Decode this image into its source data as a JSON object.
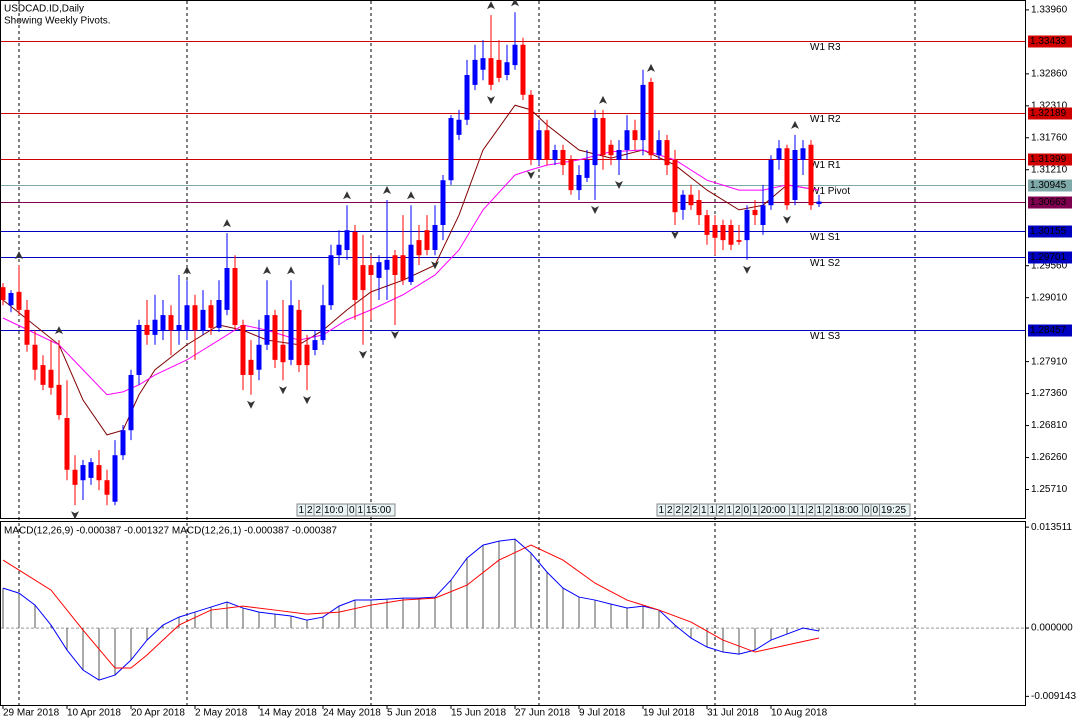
{
  "chart_data": [
    {
      "type": "candlestick",
      "title": "USDCAD.ID,Daily",
      "subtitle": "Showing Weekly Pivots.",
      "up_color": "#0000ff",
      "down_color": "#ff0000",
      "xlim": [
        0,
        127
      ],
      "ylim": [
        1.2522,
        1.3413
      ],
      "xticks": [
        {
          "value": 0,
          "label": "29 Mar 2018"
        },
        {
          "value": 8,
          "label": "10 Apr 2018"
        },
        {
          "value": 16,
          "label": "20 Apr 2018"
        },
        {
          "value": 24,
          "label": "2 May 2018"
        },
        {
          "value": 32,
          "label": "14 May 2018"
        },
        {
          "value": 40,
          "label": "24 May 2018"
        },
        {
          "value": 48,
          "label": "5 Jun 2018"
        },
        {
          "value": 56,
          "label": "15 Jun 2018"
        },
        {
          "value": 64,
          "label": "27 Jun 2018"
        },
        {
          "value": 72,
          "label": "9 Jul 2018"
        },
        {
          "value": 80,
          "label": "19 Jul 2018"
        },
        {
          "value": 88,
          "label": "31 Jul 2018"
        },
        {
          "value": 96,
          "label": "10 Aug 2018"
        }
      ],
      "yticks": [
        {
          "value": 1.3396,
          "label": "1.33960"
        },
        {
          "value": 1.3286,
          "label": "1.32860"
        },
        {
          "value": 1.3231,
          "label": "1.32310"
        },
        {
          "value": 1.3176,
          "label": "1.31760"
        },
        {
          "value": 1.3121,
          "label": "1.31210"
        },
        {
          "value": 1.2956,
          "label": "1.29560"
        },
        {
          "value": 1.2901,
          "label": "1.29010"
        },
        {
          "value": 1.2791,
          "label": "1.27910"
        },
        {
          "value": 1.2736,
          "label": "1.27360"
        },
        {
          "value": 1.2681,
          "label": "1.26810"
        },
        {
          "value": 1.2626,
          "label": "1.26260"
        },
        {
          "value": 1.2571,
          "label": "1.25710"
        }
      ],
      "separators": [
        2,
        23,
        46,
        67,
        89,
        114
      ],
      "candles": [
        [
          1.2919,
          1.2926,
          1.2888,
          1.2897
        ],
        [
          1.2888,
          1.2914,
          1.2876,
          1.2909
        ],
        [
          1.2911,
          1.2957,
          1.2871,
          1.288
        ],
        [
          1.288,
          1.2897,
          1.2808,
          1.282
        ],
        [
          1.282,
          1.2845,
          1.2759,
          1.2777
        ],
        [
          1.2785,
          1.2802,
          1.2742,
          1.2751
        ],
        [
          1.2777,
          1.2828,
          1.2734,
          1.2746
        ],
        [
          1.2751,
          1.2828,
          1.2691,
          1.2699
        ],
        [
          1.2694,
          1.2759,
          1.2587,
          1.2605
        ],
        [
          1.2605,
          1.263,
          1.2544,
          1.2579
        ],
        [
          1.2587,
          1.2622,
          1.2553,
          1.2613
        ],
        [
          1.2591,
          1.2625,
          1.2579,
          1.2618
        ],
        [
          1.2613,
          1.2639,
          1.257,
          1.2587
        ],
        [
          1.2587,
          1.2605,
          1.2544,
          1.2562
        ],
        [
          1.255,
          1.2656,
          1.2544,
          1.263
        ],
        [
          1.263,
          1.2682,
          1.2622,
          1.2673
        ],
        [
          1.2673,
          1.2777,
          1.2656,
          1.2768
        ],
        [
          1.2768,
          1.2863,
          1.2751,
          1.2854
        ],
        [
          1.2854,
          1.2897,
          1.282,
          1.2837
        ],
        [
          1.2837,
          1.2906,
          1.282,
          1.2863
        ],
        [
          1.2845,
          1.2897,
          1.2828,
          1.2871
        ],
        [
          1.2871,
          1.2888,
          1.2802,
          1.2845
        ],
        [
          1.2845,
          1.294,
          1.282,
          1.2854
        ],
        [
          1.2845,
          1.2931,
          1.2828,
          1.2888
        ],
        [
          1.2888,
          1.2906,
          1.2794,
          1.2845
        ],
        [
          1.2845,
          1.2914,
          1.2837,
          1.288
        ],
        [
          1.2888,
          1.2897,
          1.2837,
          1.2849
        ],
        [
          1.2849,
          1.2931,
          1.2842,
          1.2897
        ],
        [
          1.288,
          1.3012,
          1.2871,
          1.2952
        ],
        [
          1.2952,
          1.2974,
          1.2845,
          1.2854
        ],
        [
          1.2854,
          1.2863,
          1.2742,
          1.2768
        ],
        [
          1.2794,
          1.2828,
          1.2734,
          1.2768
        ],
        [
          1.2777,
          1.2863,
          1.2759,
          1.282
        ],
        [
          1.282,
          1.2931,
          1.2811,
          1.2871
        ],
        [
          1.2871,
          1.288,
          1.278,
          1.2794
        ],
        [
          1.282,
          1.2897,
          1.2759,
          1.279
        ],
        [
          1.2794,
          1.2931,
          1.2785,
          1.2888
        ],
        [
          1.288,
          1.2897,
          1.2773,
          1.2785
        ],
        [
          1.282,
          1.2837,
          1.2742,
          1.2785
        ],
        [
          1.2811,
          1.2845,
          1.2802,
          1.2828
        ],
        [
          1.2828,
          1.2923,
          1.282,
          1.2888
        ],
        [
          1.2888,
          1.2992,
          1.288,
          1.2974
        ],
        [
          1.2974,
          1.3017,
          1.2957,
          1.2992
        ],
        [
          1.2983,
          1.306,
          1.2966,
          1.3017
        ],
        [
          1.3014,
          1.3026,
          1.2863,
          1.2897
        ],
        [
          1.2957,
          1.3009,
          1.282,
          1.2914
        ],
        [
          1.2957,
          1.2974,
          1.2863,
          1.294
        ],
        [
          1.2935,
          1.2974,
          1.2897,
          1.2962
        ],
        [
          1.2949,
          1.3069,
          1.2897,
          1.2966
        ],
        [
          1.2974,
          1.2983,
          1.2854,
          1.294
        ],
        [
          1.2974,
          1.3043,
          1.2923,
          1.2931
        ],
        [
          1.2928,
          1.306,
          1.2923,
          1.2992
        ],
        [
          1.3,
          1.3026,
          1.2957,
          1.2974
        ],
        [
          1.3017,
          1.3043,
          1.2974,
          1.2983
        ],
        [
          1.2983,
          1.306,
          1.2974,
          1.3026
        ],
        [
          1.3026,
          1.3112,
          1.3,
          1.3103
        ],
        [
          1.3103,
          1.3215,
          1.3095,
          1.321
        ],
        [
          1.3181,
          1.3224,
          1.3172,
          1.3207
        ],
        [
          1.3207,
          1.331,
          1.3198,
          1.3284
        ],
        [
          1.3267,
          1.3336,
          1.3258,
          1.331
        ],
        [
          1.3293,
          1.3344,
          1.3275,
          1.3313
        ],
        [
          1.3313,
          1.3387,
          1.3258,
          1.3267
        ],
        [
          1.331,
          1.3344,
          1.3272,
          1.3279
        ],
        [
          1.3284,
          1.3336,
          1.3275,
          1.3306
        ],
        [
          1.3301,
          1.3392,
          1.3293,
          1.3336
        ],
        [
          1.3336,
          1.3348,
          1.3241,
          1.325
        ],
        [
          1.325,
          1.3258,
          1.3129,
          1.3138
        ],
        [
          1.3138,
          1.3207,
          1.3129,
          1.3189
        ],
        [
          1.3189,
          1.3207,
          1.3129,
          1.3138
        ],
        [
          1.3138,
          1.3164,
          1.3129,
          1.3155
        ],
        [
          1.3155,
          1.3164,
          1.3112,
          1.3129
        ],
        [
          1.3138,
          1.3146,
          1.3078,
          1.3086
        ],
        [
          1.3086,
          1.3129,
          1.3069,
          1.3112
        ],
        [
          1.3107,
          1.3155,
          1.31,
          1.3138
        ],
        [
          1.3129,
          1.3224,
          1.3069,
          1.321
        ],
        [
          1.321,
          1.3224,
          1.3121,
          1.3146
        ],
        [
          1.3164,
          1.3172,
          1.3129,
          1.3146
        ],
        [
          1.3138,
          1.3172,
          1.3112,
          1.3155
        ],
        [
          1.3155,
          1.3215,
          1.3138,
          1.3189
        ],
        [
          1.3189,
          1.3207,
          1.3155,
          1.3172
        ],
        [
          1.3172,
          1.3293,
          1.3146,
          1.3267
        ],
        [
          1.3272,
          1.3279,
          1.3138,
          1.3146
        ],
        [
          1.3146,
          1.3189,
          1.3138,
          1.3172
        ],
        [
          1.3172,
          1.3181,
          1.3112,
          1.3129
        ],
        [
          1.3138,
          1.3155,
          1.3026,
          1.3048
        ],
        [
          1.3052,
          1.3086,
          1.3035,
          1.3078
        ],
        [
          1.3078,
          1.3095,
          1.3052,
          1.306
        ],
        [
          1.3069,
          1.3086,
          1.3026,
          1.3043
        ],
        [
          1.3043,
          1.3052,
          1.2992,
          1.3009
        ],
        [
          1.3026,
          1.3043,
          1.2974,
          1.3004
        ],
        [
          1.3026,
          1.3035,
          1.2983,
          1.3
        ],
        [
          1.3026,
          1.3035,
          1.2983,
          1.2992
        ],
        [
          1.3,
          1.3026,
          1.2992,
          1.2997
        ],
        [
          1.3,
          1.306,
          1.2966,
          1.3052
        ],
        [
          1.3052,
          1.3069,
          1.3026,
          1.3043
        ],
        [
          1.3026,
          1.3095,
          1.3009,
          1.306
        ],
        [
          1.306,
          1.3146,
          1.3052,
          1.3138
        ],
        [
          1.3138,
          1.3172,
          1.3121,
          1.3158
        ],
        [
          1.3158,
          1.3164,
          1.3052,
          1.306
        ],
        [
          1.3069,
          1.3181,
          1.306,
          1.3155
        ],
        [
          1.3138,
          1.3172,
          1.3112,
          1.3158
        ],
        [
          1.3164,
          1.3172,
          1.3052,
          1.306
        ],
        [
          1.3062,
          1.3078,
          1.3057,
          1.30663
        ]
      ],
      "moving_averages": [
        {
          "color": "#800000",
          "x": [
            0,
            7,
            10,
            13,
            15,
            17,
            19,
            23,
            27,
            30,
            33,
            37,
            40,
            43,
            46,
            50,
            54,
            57,
            60,
            64,
            66,
            68,
            72,
            76,
            80,
            84,
            88,
            92,
            95,
            98,
            102
          ],
          "values": [
            1.2897,
            1.282,
            1.2725,
            1.2665,
            1.2673,
            1.2734,
            1.2777,
            1.282,
            1.2854,
            1.2845,
            1.2828,
            1.282,
            1.2845,
            1.288,
            1.2911,
            1.2931,
            1.2957,
            1.3043,
            1.3155,
            1.3232,
            1.3224,
            1.3198,
            1.3155,
            1.3141,
            1.3155,
            1.3129,
            1.3086,
            1.3052,
            1.306,
            1.3095,
            1.3086
          ]
        },
        {
          "color": "#ff00ff",
          "x": [
            0,
            7,
            10,
            13,
            15,
            17,
            19,
            23,
            27,
            30,
            33,
            37,
            40,
            43,
            46,
            50,
            54,
            57,
            60,
            64,
            66,
            68,
            72,
            76,
            80,
            84,
            88,
            92,
            95,
            98,
            102
          ],
          "values": [
            1.2866,
            1.282,
            1.2777,
            1.2734,
            1.2739,
            1.2751,
            1.2768,
            1.2794,
            1.2828,
            1.2854,
            1.2845,
            1.2828,
            1.2837,
            1.2863,
            1.288,
            1.2906,
            1.294,
            1.2983,
            1.3052,
            1.3112,
            1.3121,
            1.3129,
            1.3138,
            1.3152,
            1.3155,
            1.3138,
            1.3103,
            1.3086,
            1.3086,
            1.3095,
            1.3086
          ]
        }
      ],
      "levels": [
        {
          "name": "W1 R3",
          "value": 1.33433,
          "color": "#d00000"
        },
        {
          "name": "W1 R2",
          "value": 1.32189,
          "color": "#d00000"
        },
        {
          "name": "W1 R1",
          "value": 1.31399,
          "color": "#d00000"
        },
        {
          "name": "W1 Pivot",
          "value": 1.30945,
          "color": "#7fa8a8"
        },
        {
          "value": 1.30663,
          "color": "#800050"
        },
        {
          "name": "W1 S1",
          "value": 1.30155,
          "color": "#0000c0"
        },
        {
          "name": "W1 S2",
          "value": 1.29701,
          "color": "#0000c0"
        },
        {
          "name": "W1 S3",
          "value": 1.28457,
          "color": "#0000c0"
        }
      ],
      "fractals_up": [
        2,
        7,
        23,
        28,
        33,
        36,
        43,
        48,
        51,
        61,
        64,
        75,
        81,
        99
      ],
      "fractals_down": [
        9,
        31,
        35,
        38,
        45,
        49,
        54,
        61,
        66,
        74,
        77,
        84,
        93,
        98
      ],
      "timer_boxes": [
        [
          "1",
          "2",
          "2",
          "10:0",
          "0",
          "1",
          "15:00"
        ],
        [
          "1",
          "2",
          "2",
          "2",
          "2",
          "1",
          "1",
          "2",
          "1",
          "2",
          "0",
          "1",
          "20:00",
          "1",
          "1",
          "2",
          "1",
          "2",
          "18:00",
          "0",
          "0",
          "19:25"
        ]
      ]
    },
    {
      "type": "macd",
      "title": "MACD(12,26,9) -0.000387 -0.001327 MACD(12,26,1) -0.000387 -0.000387",
      "xlim": [
        0,
        127
      ],
      "ylim": [
        -0.0103,
        0.0142
      ],
      "yticks": [
        0.013511,
        {
          "value": 0,
          "label": "0.000000"
        },
        -0.009143
      ],
      "color": "#0000ff",
      "hist_color": "#555555",
      "x": [
        0,
        2,
        4,
        6,
        8,
        10,
        12,
        14,
        16,
        18,
        20,
        22,
        24,
        26,
        28,
        30,
        32,
        34,
        36,
        38,
        40,
        42,
        44,
        46,
        48,
        50,
        52,
        54,
        56,
        58,
        60,
        62,
        64,
        66,
        68,
        70,
        72,
        74,
        76,
        78,
        80,
        82,
        84,
        86,
        88,
        90,
        92,
        94,
        96,
        98,
        100,
        102
      ],
      "values": [
        0.00535,
        0.00468,
        0.00308,
        0.0004,
        -0.00294,
        -0.00562,
        -0.00696,
        -0.00629,
        -0.00428,
        -0.00161,
        0.0004,
        0.00147,
        0.00214,
        0.00281,
        0.00348,
        0.00268,
        0.00214,
        0.00187,
        0.00161,
        0.00107,
        0.00147,
        0.00294,
        0.00375,
        0.00375,
        0.00388,
        0.00401,
        0.00401,
        0.00415,
        0.00642,
        0.00937,
        0.01111,
        0.01164,
        0.01191,
        0.01004,
        0.00749,
        0.00535,
        0.00415,
        0.00375,
        0.00321,
        0.00268,
        0.00294,
        0.00241,
        0.0004,
        -0.00134,
        -0.00254,
        -0.00321,
        -0.00348,
        -0.00294,
        -0.00161,
        -0.0008,
        0,
        -0.000387
      ],
      "signal": {
        "color": "#ff0000",
        "x": [
          0,
          6,
          10,
          14,
          16,
          18,
          22,
          26,
          30,
          34,
          38,
          42,
          46,
          50,
          54,
          58,
          62,
          66,
          70,
          74,
          78,
          82,
          86,
          90,
          94,
          98,
          102
        ],
        "values": [
          0.0091,
          0.00508,
          -0.00027,
          -0.00535,
          -0.00535,
          -0.00361,
          0.0004,
          0.00241,
          0.00294,
          0.00241,
          0.00187,
          0.00214,
          0.00308,
          0.00375,
          0.00401,
          0.00575,
          0.0091,
          0.01111,
          0.0091,
          0.00602,
          0.00375,
          0.00241,
          0.0008,
          -0.00161,
          -0.00321,
          -0.00227,
          -0.001327
        ]
      }
    }
  ]
}
